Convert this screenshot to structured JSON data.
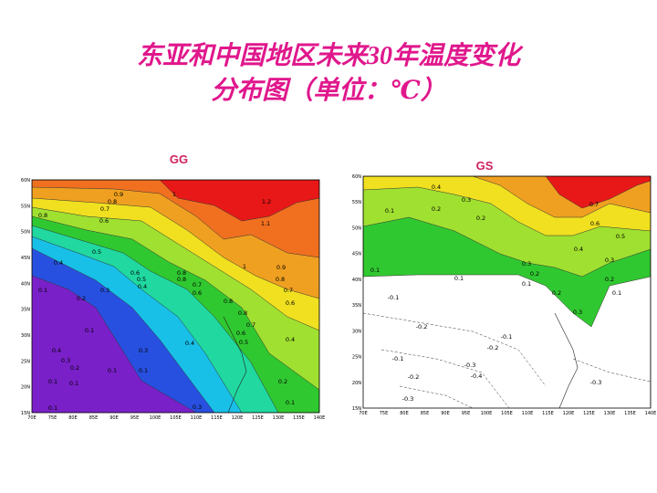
{
  "title": {
    "line1": "东亚和中国地区未来30年温度变化",
    "line2": "分布图（单位：℃）"
  },
  "panels": [
    {
      "label": "GG",
      "y_ticks": [
        "60N",
        "55N",
        "50N",
        "45N",
        "40N",
        "35N",
        "30N",
        "25N",
        "20N",
        "15N"
      ],
      "x_ticks": [
        "70E",
        "75E",
        "80E",
        "85E",
        "90E",
        "95E",
        "100E",
        "105E",
        "110E",
        "115E",
        "120E",
        "125E",
        "130E",
        "135E",
        "140E"
      ],
      "contour_labels": [
        "0.9",
        "1",
        "0.8",
        "0.7",
        "0.8",
        "1.2",
        "0.6",
        "1.1",
        "0.5",
        "0.4",
        "1",
        "0.9",
        "0.6",
        "0.8",
        "0.8",
        "0.8",
        "0.5",
        "0.4",
        "0.7",
        "0.6",
        "0.1",
        "0.3",
        "0.2",
        "0.7",
        "0.8",
        "0.6",
        "0.8",
        "0.7",
        "0.1",
        "0.6",
        "0.4",
        "0.5",
        "0.4",
        "0.4",
        "0.3",
        "0.3",
        "0.2",
        "0.1",
        "0.1",
        "0.2",
        "0.1",
        "0.1",
        "0.3",
        "0.1",
        "0.1"
      ]
    },
    {
      "label": "GS",
      "y_ticks": [
        "60N",
        "55N",
        "50N",
        "45N",
        "40N",
        "35N",
        "30N",
        "25N",
        "20N",
        "15N"
      ],
      "x_ticks": [
        "70E",
        "75E",
        "80E",
        "85E",
        "90E",
        "95E",
        "100E",
        "105E",
        "110E",
        "115E",
        "120E",
        "125E",
        "130E",
        "135E",
        "140E"
      ],
      "contour_labels": [
        "0.4",
        "0.3",
        "0.2",
        "0.1",
        "0.7",
        "0.2",
        "0.6",
        "0.5",
        "0.4",
        "0.3",
        "0.3",
        "0.1",
        "0.2",
        "0.2",
        "0.1",
        "0.1",
        "0.2",
        "0.1",
        "-0.1",
        "0.3",
        "-0.2",
        "-0.1",
        "-0.2",
        "-0.1",
        "-0.3",
        "-0.4",
        "-0.2",
        "-0.3",
        "-0.3"
      ]
    }
  ]
}
